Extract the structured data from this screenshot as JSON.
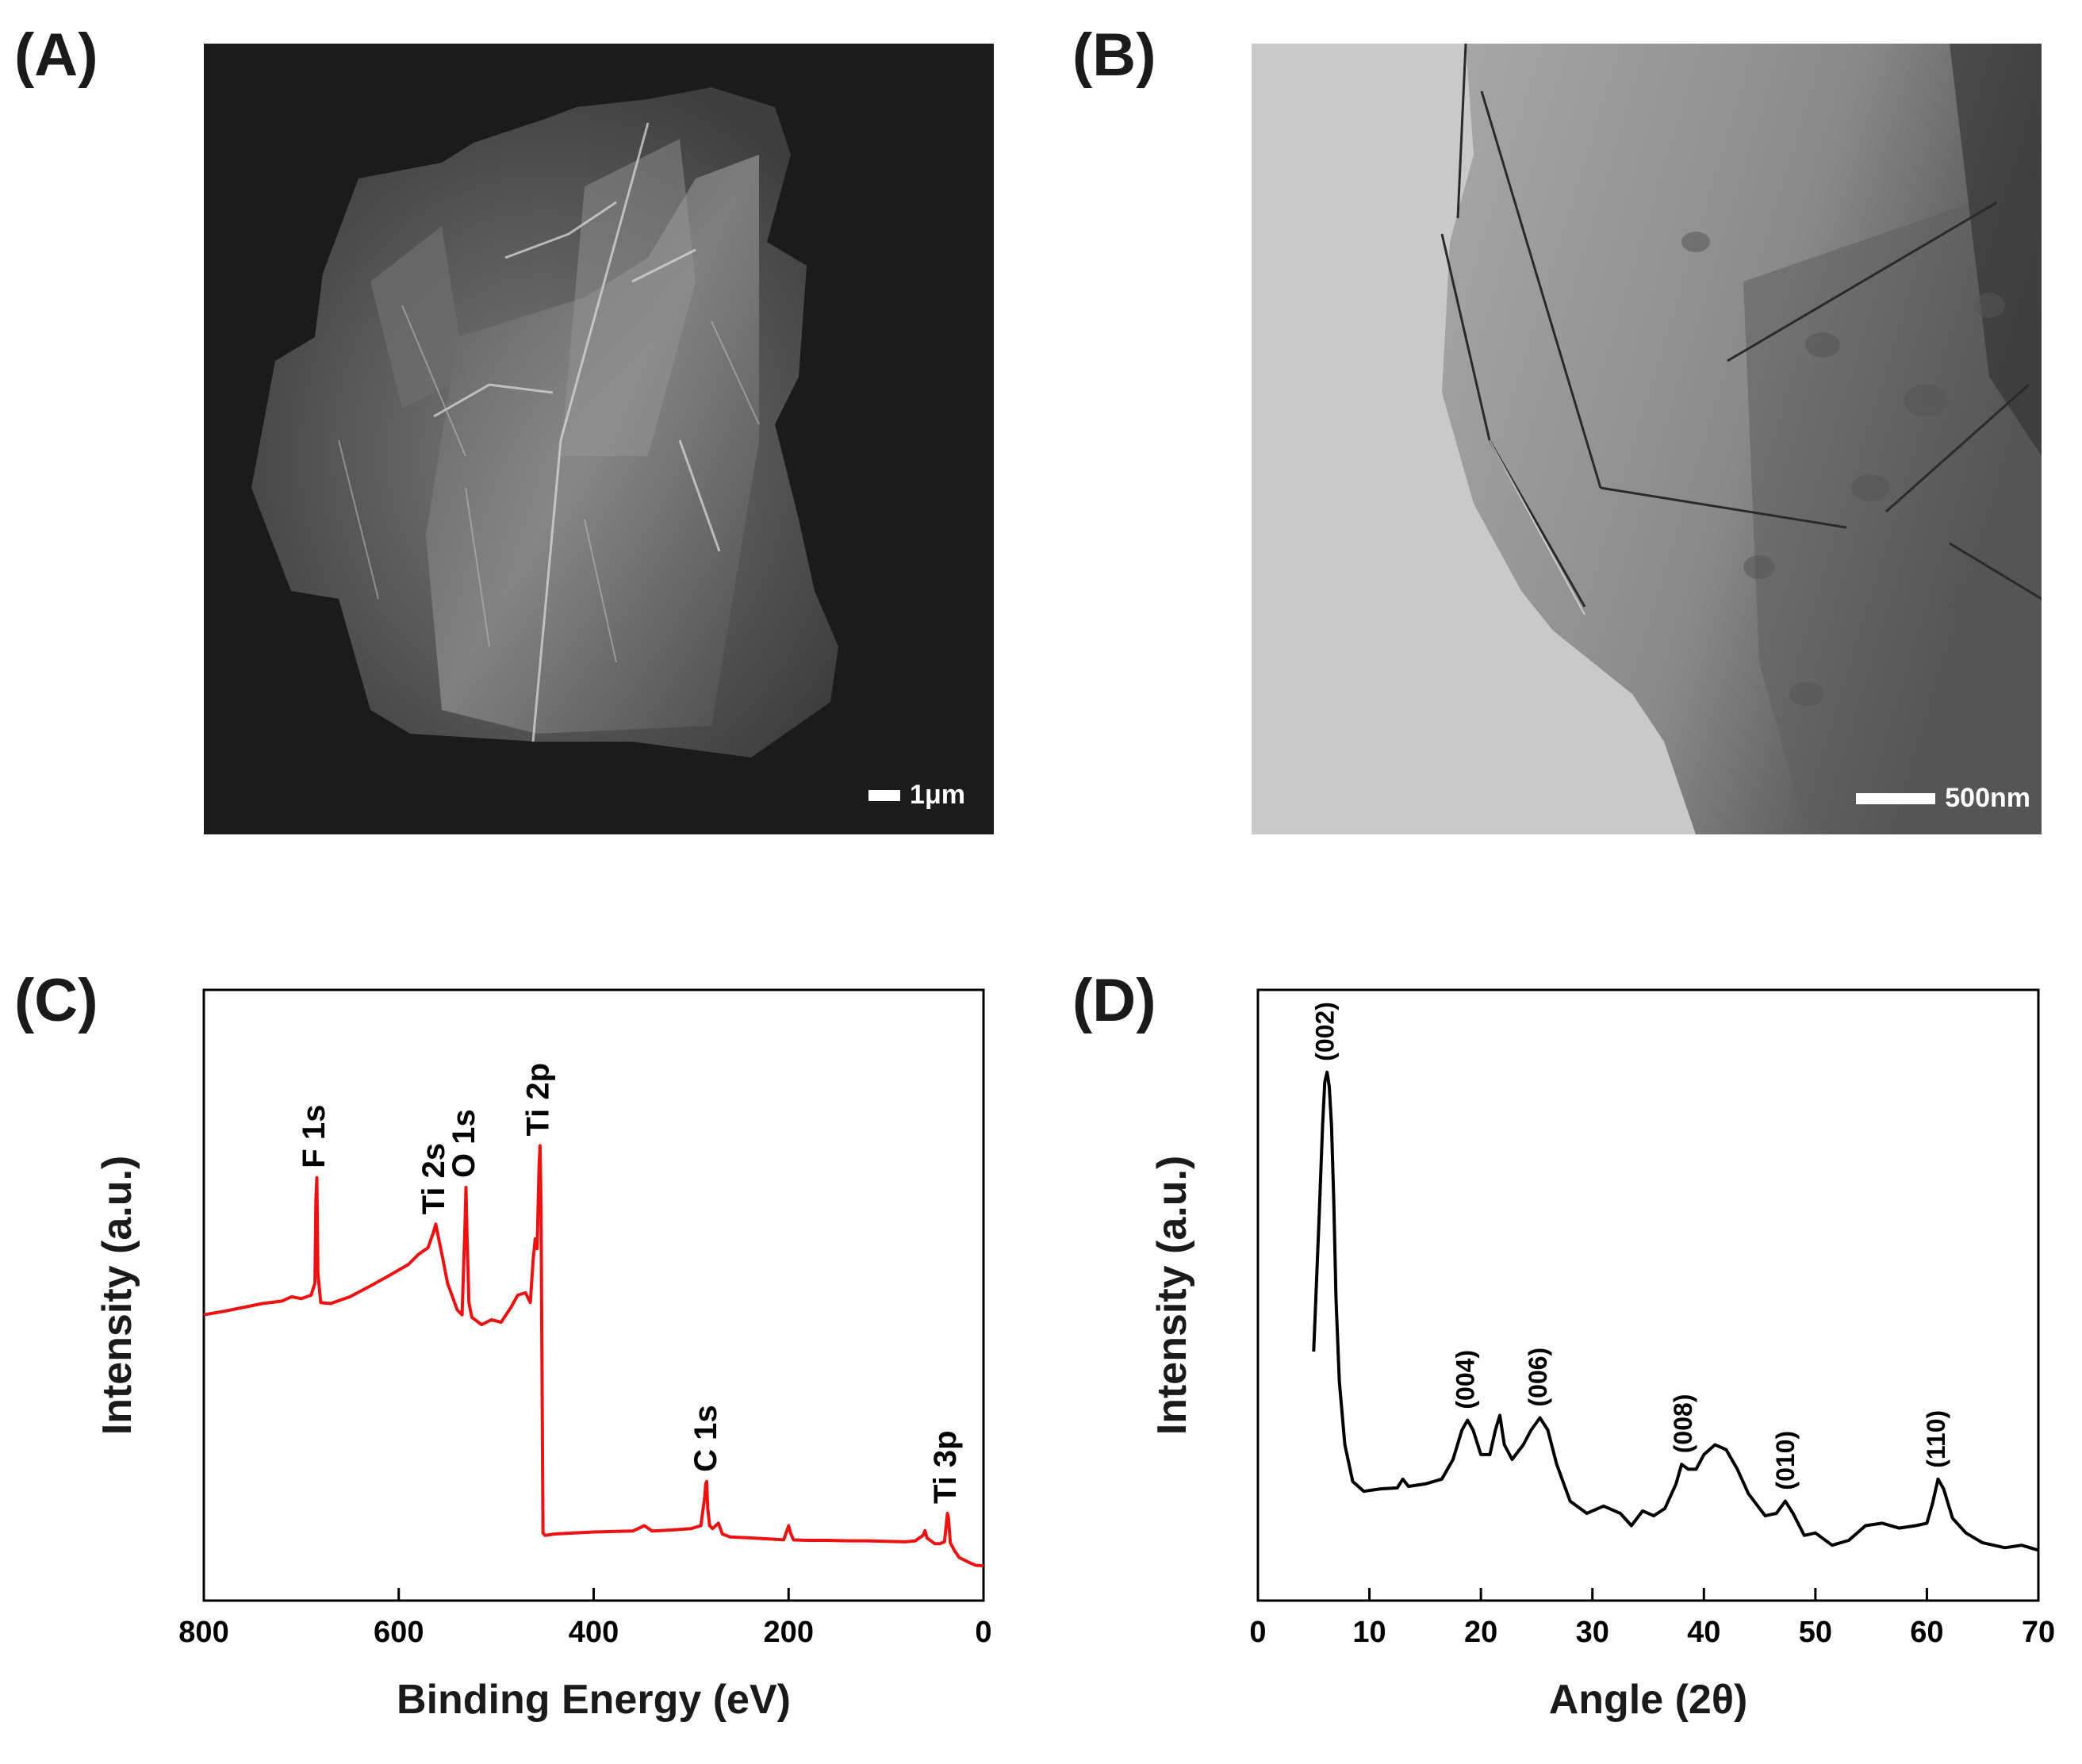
{
  "panels": {
    "a": {
      "label": "(A)",
      "scale_text": "1μm"
    },
    "b": {
      "label": "(B)",
      "scale_text": "500nm"
    },
    "c": {
      "label": "(C)"
    },
    "d": {
      "label": "(D)"
    }
  },
  "colors": {
    "xps_line": "#ee1111",
    "xrd_line": "#000000",
    "sem_background": "#1b1b1b",
    "tem_background": "#c9c9c9"
  },
  "chart_data": [
    {
      "type": "line",
      "panel": "C",
      "xlabel": "Binding Energy (eV)",
      "ylabel": "Intensity (a.u.)",
      "xlim": [
        800,
        0
      ],
      "x_reversed": true,
      "ylim": [
        0,
        100
      ],
      "yticks_shown": false,
      "xticks": [
        800,
        600,
        400,
        200,
        0
      ],
      "grid": false,
      "series": [
        {
          "x": [
            800,
            780,
            760,
            740,
            720,
            710,
            700,
            690,
            686,
            685,
            684,
            683,
            680,
            670,
            650,
            630,
            610,
            590,
            580,
            575,
            570,
            565,
            562,
            560,
            555,
            550,
            540,
            535,
            532,
            531,
            530,
            528,
            525,
            515,
            505,
            495,
            485,
            478,
            470,
            465,
            462,
            460,
            458,
            456,
            455,
            454,
            453,
            452,
            450,
            440,
            420,
            400,
            380,
            360,
            348,
            340,
            320,
            300,
            290,
            286,
            285,
            284,
            283,
            281,
            278,
            272,
            268,
            260,
            240,
            220,
            205,
            200,
            198,
            195,
            180,
            160,
            140,
            120,
            100,
            80,
            70,
            62,
            60,
            58,
            50,
            45,
            40,
            38,
            37,
            36,
            34,
            30,
            25,
            15,
            8,
            0
          ],
          "y": [
            51.5,
            52.2,
            53.0,
            53.8,
            54.3,
            55.2,
            54.8,
            55.5,
            58.0,
            75.0,
            79.5,
            60.0,
            54.0,
            53.8,
            55.2,
            57.3,
            59.5,
            61.8,
            63.8,
            64.5,
            65.2,
            68.0,
            70.0,
            68.0,
            63.2,
            58.0,
            52.5,
            51.5,
            70.0,
            77.5,
            68.0,
            54.0,
            51.0,
            49.5,
            50.5,
            50.0,
            53.0,
            55.5,
            56.0,
            54.0,
            63.0,
            67.0,
            65.0,
            82.0,
            86.0,
            74.0,
            40.0,
            7.0,
            6.5,
            6.8,
            7.0,
            7.2,
            7.3,
            7.4,
            8.5,
            7.4,
            7.6,
            7.9,
            8.5,
            14.5,
            17.0,
            17.5,
            12.0,
            8.5,
            7.9,
            9.0,
            6.8,
            6.2,
            6.0,
            5.8,
            5.6,
            8.5,
            7.0,
            5.6,
            5.5,
            5.5,
            5.4,
            5.4,
            5.3,
            5.2,
            5.4,
            6.5,
            7.5,
            6.0,
            4.8,
            4.8,
            5.2,
            9.0,
            11.0,
            10.0,
            5.0,
            3.5,
            2.0,
            1.0,
            0.4,
            0.3
          ]
        }
      ],
      "annotations": [
        {
          "text": "F 1s",
          "x": 685,
          "y": 79.5
        },
        {
          "text": "Ti 2s",
          "x": 562,
          "y": 70.0
        },
        {
          "text": "O 1s",
          "x": 531,
          "y": 77.5
        },
        {
          "text": "Ti 2p",
          "x": 455,
          "y": 86.0
        },
        {
          "text": "C 1s",
          "x": 283,
          "y": 17.5
        },
        {
          "text": "Ti 3p",
          "x": 37,
          "y": 11.0
        }
      ]
    },
    {
      "type": "line",
      "panel": "D",
      "xlabel": "Angle (2θ)",
      "ylabel": "Intensity (a.u.)",
      "xlim": [
        0,
        70
      ],
      "ylim": [
        0,
        100
      ],
      "yticks_shown": false,
      "xticks": [
        0,
        10,
        20,
        30,
        40,
        50,
        60,
        70
      ],
      "grid": false,
      "series": [
        {
          "x": [
            5.0,
            5.5,
            5.8,
            6.0,
            6.2,
            6.4,
            6.6,
            6.8,
            7.0,
            7.3,
            7.8,
            8.5,
            9.5,
            11,
            12.5,
            13,
            13.5,
            15,
            16.5,
            17.5,
            18.3,
            18.8,
            19.3,
            20.0,
            20.8,
            21.3,
            21.7,
            22.1,
            22.8,
            23.8,
            24.5,
            25.3,
            26.0,
            26.8,
            28.0,
            29.5,
            31.0,
            32.5,
            33.5,
            34.5,
            35.5,
            36.5,
            37.5,
            38.0,
            38.6,
            39.3,
            40.0,
            41.0,
            42.0,
            43.0,
            44.0,
            45.5,
            46.5,
            47.3,
            48.0,
            49.0,
            50.0,
            51.5,
            53.0,
            54.5,
            56.0,
            57.5,
            59.0,
            60.0,
            60.5,
            61.0,
            61.5,
            62.3,
            63.5,
            65.0,
            67.0,
            68.5,
            70.0
          ],
          "y": [
            44,
            72,
            90,
            99,
            101,
            98,
            90,
            75,
            55,
            38,
            25,
            17.5,
            15.5,
            16,
            16.2,
            18,
            16.5,
            17,
            18,
            22,
            28,
            30,
            28,
            23,
            23,
            28,
            31,
            25,
            22,
            25,
            28,
            30.5,
            28,
            21,
            13.5,
            11,
            12.5,
            11,
            8.5,
            11.5,
            10.5,
            12,
            17,
            21,
            20,
            20,
            23,
            25,
            24,
            20,
            15,
            10.5,
            11,
            13.5,
            11,
            6.5,
            7,
            4.5,
            5.5,
            8.5,
            9,
            8,
            8.5,
            9,
            13,
            18,
            16,
            10,
            7,
            5,
            4,
            4.5,
            3.5
          ]
        }
      ],
      "annotations": [
        {
          "text": "(002)",
          "x": 6.2,
          "y": 101
        },
        {
          "text": "(004)",
          "x": 18.8,
          "y": 30
        },
        {
          "text": "(006)",
          "x": 25.3,
          "y": 30.5
        },
        {
          "text": "(008)",
          "x": 38.3,
          "y": 21
        },
        {
          "text": "(010)",
          "x": 47.5,
          "y": 13.5
        },
        {
          "text": "(110)",
          "x": 61.0,
          "y": 18
        }
      ]
    }
  ]
}
